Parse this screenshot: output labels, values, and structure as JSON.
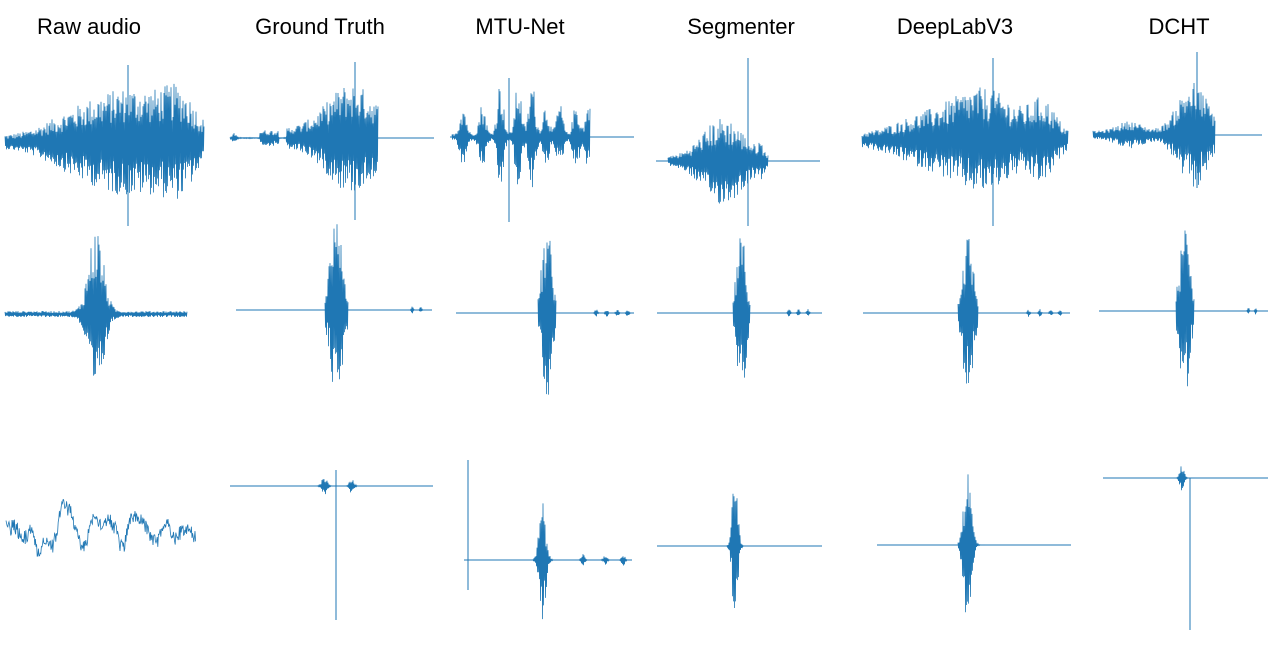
{
  "figure": {
    "columns": [
      {
        "label": "Raw audio"
      },
      {
        "label": "Ground Truth"
      },
      {
        "label": "MTU-Net"
      },
      {
        "label": "Segmenter"
      },
      {
        "label": "DeepLabV3"
      },
      {
        "label": "DCHT"
      }
    ],
    "rows": 3,
    "wave_color": "#1f77b4"
  }
}
